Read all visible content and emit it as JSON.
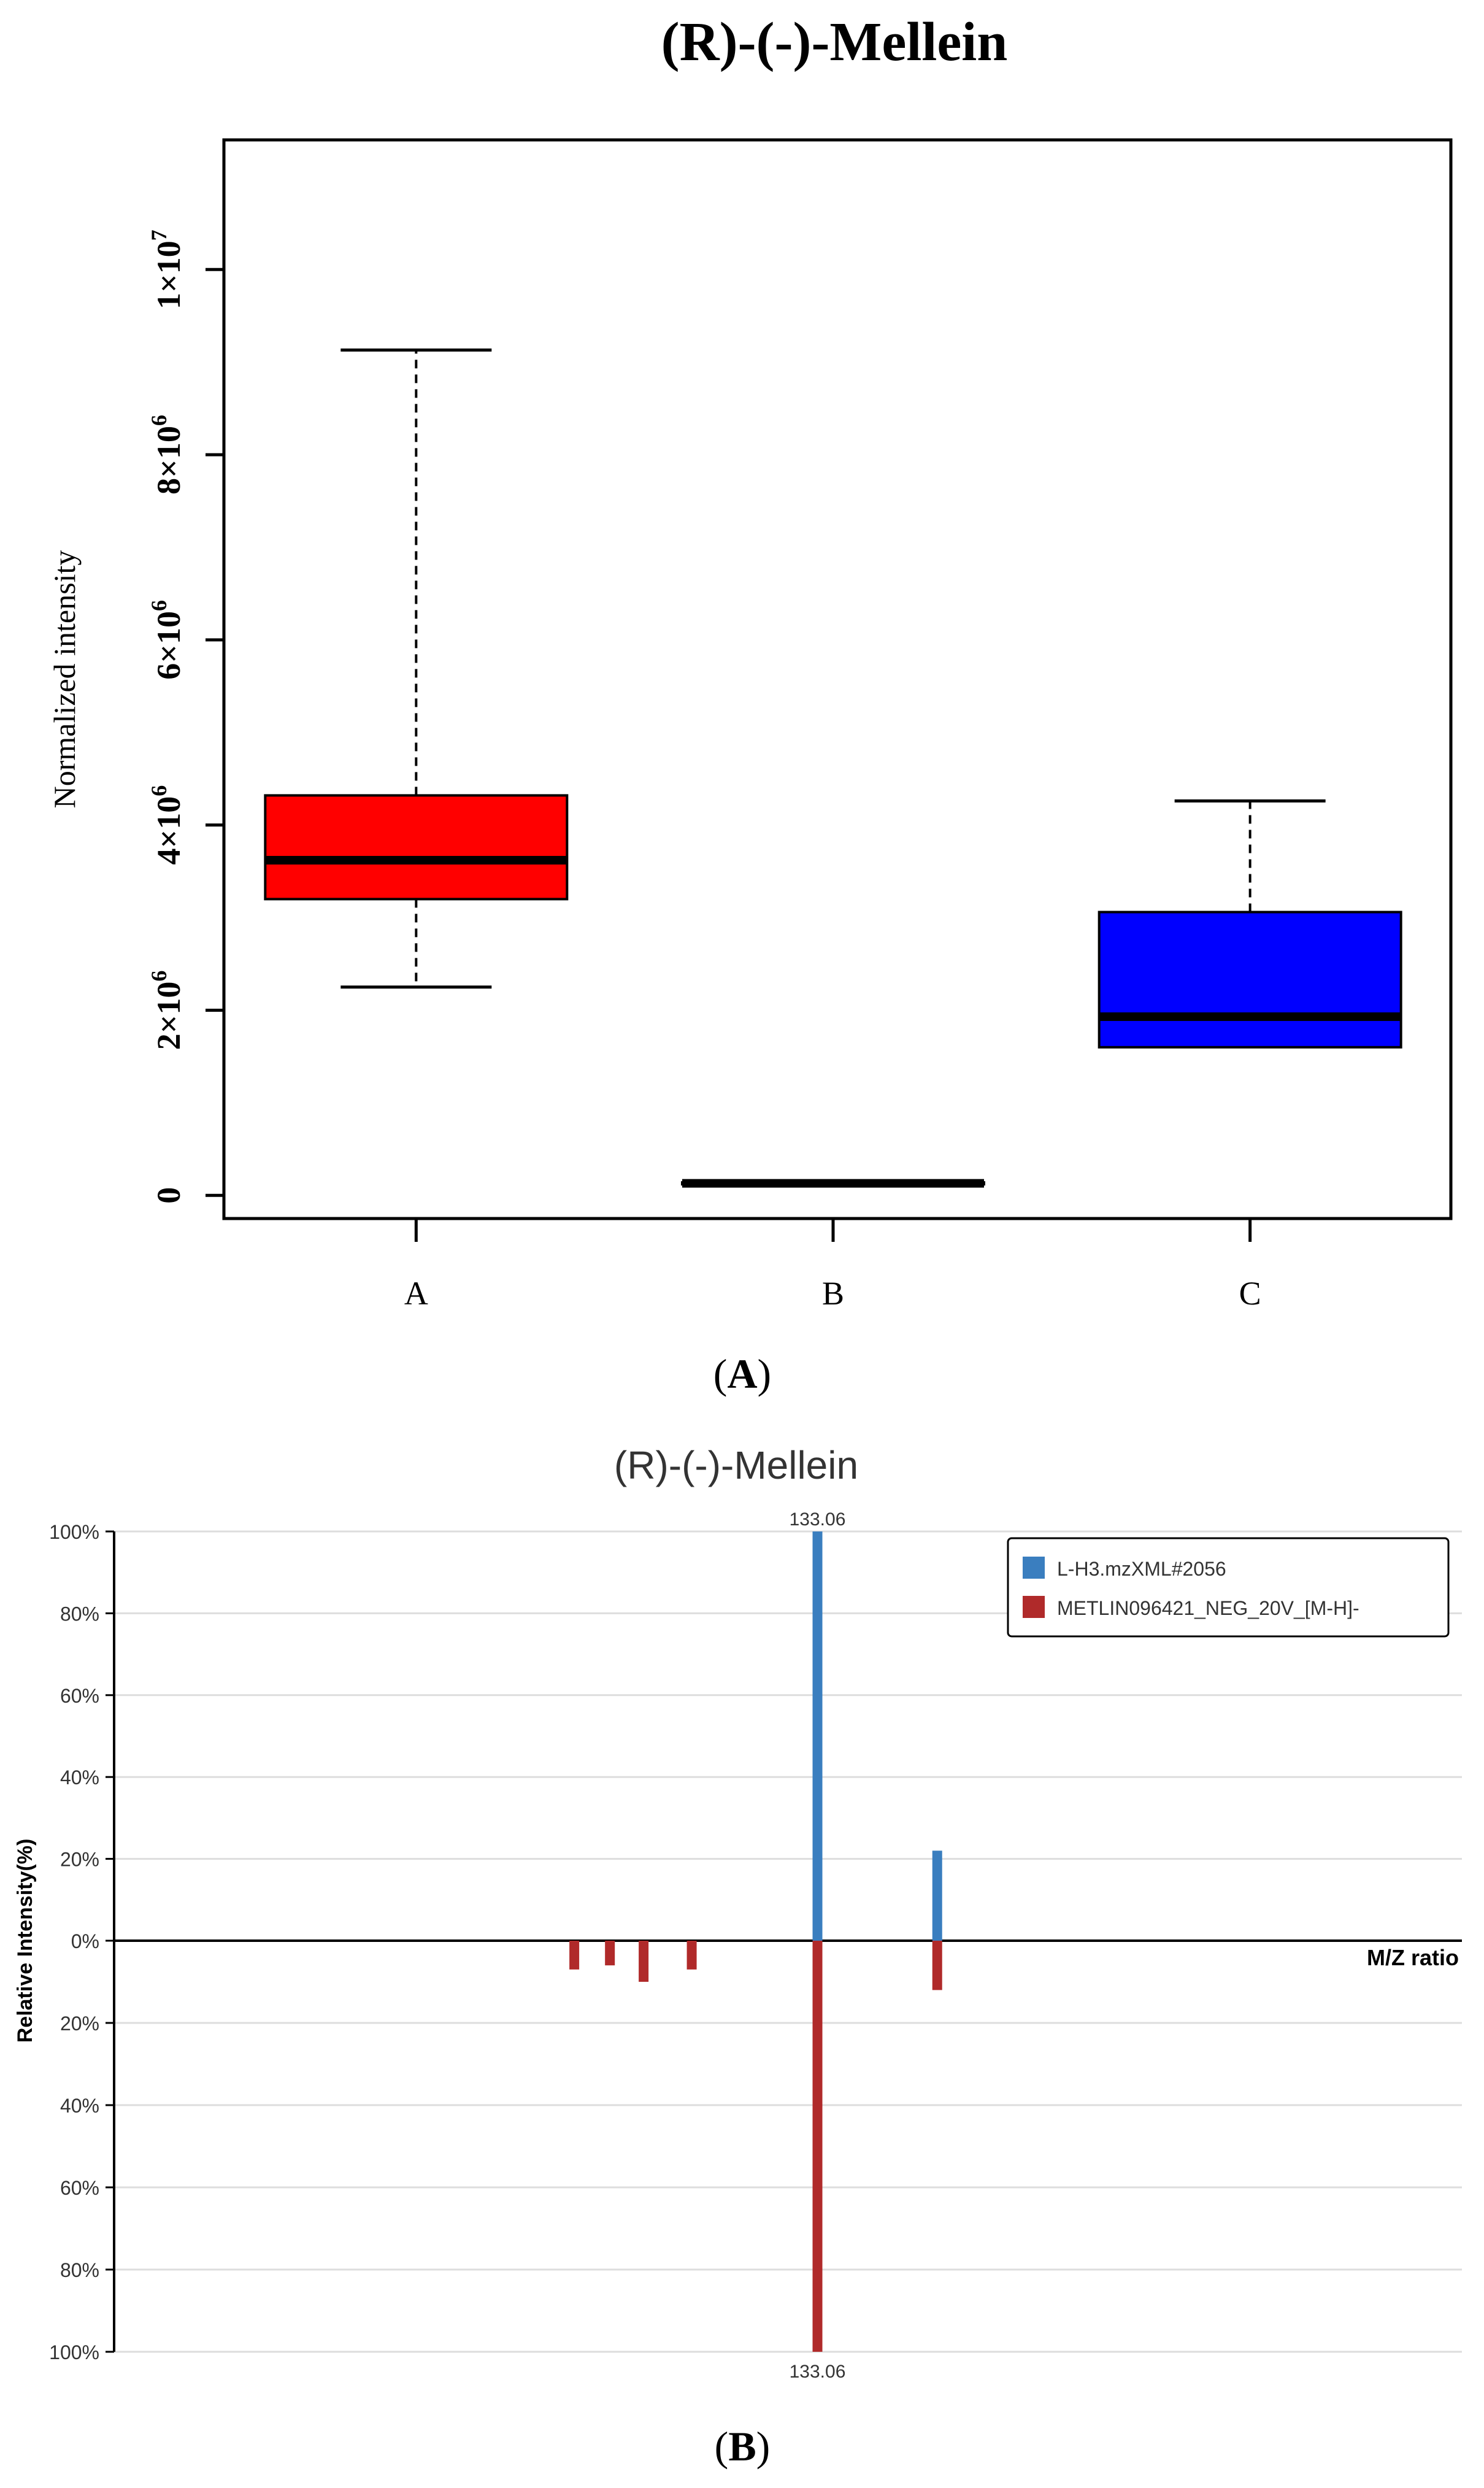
{
  "figure": {
    "panel_a_label": "A",
    "panel_b_label": "B"
  },
  "colors": {
    "box_a": "#ff0000",
    "box_b": "#000000",
    "box_c": "#0000ff",
    "sample_series": "#3a7ebf",
    "reference_series": "#b02a2a",
    "grid": "#dddddd",
    "axis": "#000000"
  },
  "chart_data": [
    {
      "type": "boxplot",
      "title": "(R)-(-)-Mellein",
      "xlabel": "",
      "ylabel": "Normalized intensity",
      "ylim": [
        -250000,
        11400000
      ],
      "yticks": [
        {
          "value": 0,
          "base": "0",
          "exp": ""
        },
        {
          "value": 2000000,
          "base": "2×10",
          "exp": "6"
        },
        {
          "value": 4000000,
          "base": "4×10",
          "exp": "6"
        },
        {
          "value": 6000000,
          "base": "6×10",
          "exp": "6"
        },
        {
          "value": 8000000,
          "base": "8×10",
          "exp": "6"
        },
        {
          "value": 10000000,
          "base": "1×10",
          "exp": "7"
        }
      ],
      "categories": [
        "A",
        "B",
        "C"
      ],
      "boxes": [
        {
          "category": "A",
          "whisker_low": 2250000,
          "q1": 3200000,
          "median": 3620000,
          "q3": 4320000,
          "whisker_high": 9130000
        },
        {
          "category": "B",
          "whisker_low": 120000,
          "q1": 120000,
          "median": 130000,
          "q3": 140000,
          "whisker_high": 140000
        },
        {
          "category": "C",
          "whisker_low": 1600000,
          "q1": 1600000,
          "median": 1930000,
          "q3": 3060000,
          "whisker_high": 4260000
        }
      ]
    },
    {
      "type": "bar",
      "title": "(R)-(-)-Mellein",
      "xlabel": "M/Z ratio",
      "ylabel": "Relative Intensity(%)",
      "ylim": [
        -100,
        100
      ],
      "yticks_top": [
        "100%",
        "80%",
        "60%",
        "40%",
        "20%",
        "0%"
      ],
      "yticks_bottom": [
        "20%",
        "40%",
        "60%",
        "80%",
        "100%"
      ],
      "xlim": [
        60,
        200
      ],
      "series": [
        {
          "name": "L-H3.mzXML#2056",
          "peaks": [
            {
              "mz": 133.06,
              "intensity": 100
            },
            {
              "mz": 145.5,
              "intensity": 22
            }
          ]
        },
        {
          "name": "METLIN096421_NEG_20V_[M-H]-",
          "peaks": [
            {
              "mz": 107.8,
              "intensity": 7
            },
            {
              "mz": 111.5,
              "intensity": 6
            },
            {
              "mz": 115.0,
              "intensity": 10
            },
            {
              "mz": 120.0,
              "intensity": 7
            },
            {
              "mz": 133.06,
              "intensity": 100
            },
            {
              "mz": 145.5,
              "intensity": 12
            }
          ]
        }
      ],
      "annotations": [
        {
          "text": "133.06",
          "mz": 133.06,
          "position": "top"
        },
        {
          "text": "133.06",
          "mz": 133.06,
          "position": "bottom"
        }
      ],
      "legend_position": "top-right"
    }
  ]
}
